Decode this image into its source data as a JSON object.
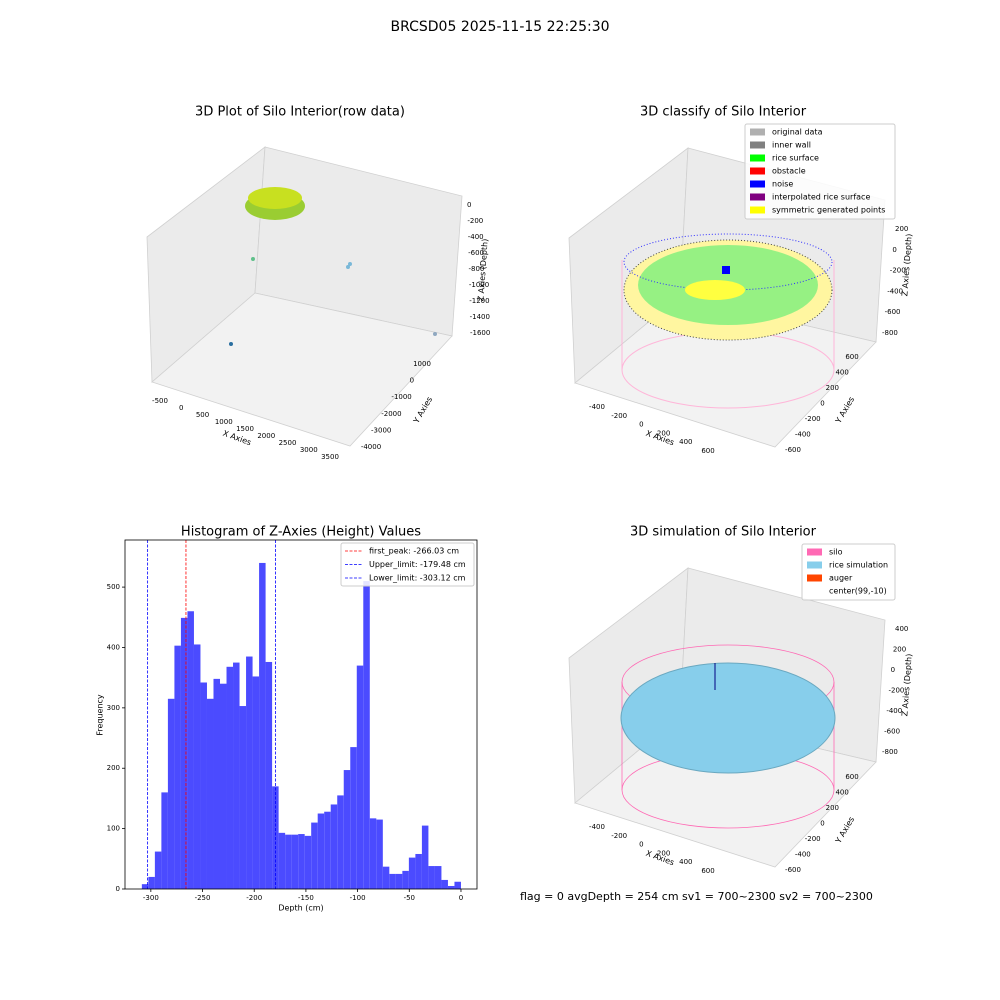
{
  "title": "BRCSD05 2025-11-15 22:25:30",
  "footer": "flag = 0     avgDepth = 254 cm  sv1 = 700~2300  sv2 = 700~2300",
  "chart_data": [
    {
      "type": "scatter3d",
      "title": "3D Plot of Silo Interior(row data)",
      "xlabel": "X Axies",
      "ylabel": "Y Axies",
      "zlabel": "Z Axies (Depth)",
      "xticks": [
        -500,
        0,
        500,
        1000,
        1500,
        2000,
        2500,
        3000,
        3500
      ],
      "yticks": [
        1000,
        0,
        -1000,
        -2000,
        -3000,
        -4000
      ],
      "zticks": [
        0,
        -200,
        -400,
        -600,
        -800,
        -1000,
        -1200,
        -1400,
        -1600
      ]
    },
    {
      "type": "scatter3d",
      "title": "3D classify of Silo Interior",
      "xlabel": "X Axies",
      "ylabel": "Y Axies",
      "zlabel": "Z Axies (Depth)",
      "xticks": [
        -400,
        -200,
        0,
        200,
        400,
        600
      ],
      "yticks": [
        600,
        400,
        200,
        0,
        -200,
        -400,
        -600
      ],
      "zticks": [
        200,
        0,
        -200,
        -400,
        -600,
        -800
      ],
      "legend": [
        {
          "name": "original data",
          "color": "#b0b0b0"
        },
        {
          "name": "inner wall",
          "color": "#808080"
        },
        {
          "name": "rice surface",
          "color": "#00ff00"
        },
        {
          "name": "obstacle",
          "color": "#ff0000"
        },
        {
          "name": "noise",
          "color": "#0000ff"
        },
        {
          "name": "interpolated rice surface",
          "color": "#800080"
        },
        {
          "name": "symmetric generated points",
          "color": "#ffff00"
        }
      ]
    },
    {
      "type": "histogram",
      "title": "Histogram of Z-Axies (Height) Values",
      "xlabel": "Depth (cm)",
      "ylabel": "Frequency",
      "color": "#4b4bff",
      "bins": [
        -308.7,
        -302.4,
        -296.1,
        -289.8,
        -283.5,
        -277.2,
        -270.9,
        -264.6,
        -258.3,
        -252.0,
        -245.7,
        -239.4,
        -233.1,
        -226.8,
        -220.5,
        -214.2,
        -207.9,
        -201.6,
        -195.3,
        -189.0,
        -182.7,
        -176.4,
        -170.1,
        -163.8,
        -157.5,
        -151.2,
        -144.9,
        -138.6,
        -132.3,
        -126.0,
        -119.7,
        -113.4,
        -107.1,
        -100.8,
        -94.5,
        -88.2,
        -81.9,
        -75.6,
        -69.3,
        -63.0,
        -56.7,
        -50.4,
        -44.1,
        -37.8,
        -31.5,
        -25.2,
        -18.9,
        -12.6,
        -6.3,
        0
      ],
      "values": [
        8,
        20,
        62,
        160,
        315,
        403,
        449,
        460,
        405,
        342,
        315,
        348,
        340,
        368,
        375,
        303,
        385,
        352,
        540,
        376,
        170,
        93,
        90,
        90,
        91,
        88,
        110,
        125,
        128,
        140,
        155,
        197,
        235,
        370,
        510,
        117,
        115,
        37,
        25,
        25,
        30,
        52,
        58,
        105,
        38,
        38,
        15,
        5,
        12
      ],
      "xlim": [
        -325,
        15.5
      ],
      "ylim": [
        0,
        578
      ],
      "xticks": [
        -300,
        -250,
        -200,
        -150,
        -100,
        -50,
        0
      ],
      "yticks": [
        0,
        100,
        200,
        300,
        400,
        500
      ],
      "vlines": [
        {
          "name": "first_peak: -266.03 cm",
          "value": -266.03,
          "color": "#ff0000"
        },
        {
          "name": "Upper_limit: -179.48 cm",
          "value": -179.48,
          "color": "#0000ff"
        },
        {
          "name": "Lower_limit: -303.12 cm",
          "value": -303.12,
          "color": "#0000ff"
        }
      ]
    },
    {
      "type": "scatter3d",
      "title": "3D simulation of Silo Interior",
      "xlabel": "X Axies",
      "ylabel": "Y Axies",
      "zlabel": "Z Axies (Depth)",
      "xticks": [
        -400,
        -200,
        0,
        200,
        400,
        600
      ],
      "yticks": [
        600,
        400,
        200,
        0,
        -200,
        -400,
        -600
      ],
      "zticks": [
        400,
        200,
        0,
        -200,
        -400,
        -600,
        -800
      ],
      "legend": [
        {
          "name": "silo",
          "color": "#ff69b4"
        },
        {
          "name": "rice simulation",
          "color": "#87ceeb"
        },
        {
          "name": "auger",
          "color": "#ff4500"
        },
        {
          "name": "center(99,-10)",
          "color": "#ffffff"
        }
      ]
    }
  ]
}
